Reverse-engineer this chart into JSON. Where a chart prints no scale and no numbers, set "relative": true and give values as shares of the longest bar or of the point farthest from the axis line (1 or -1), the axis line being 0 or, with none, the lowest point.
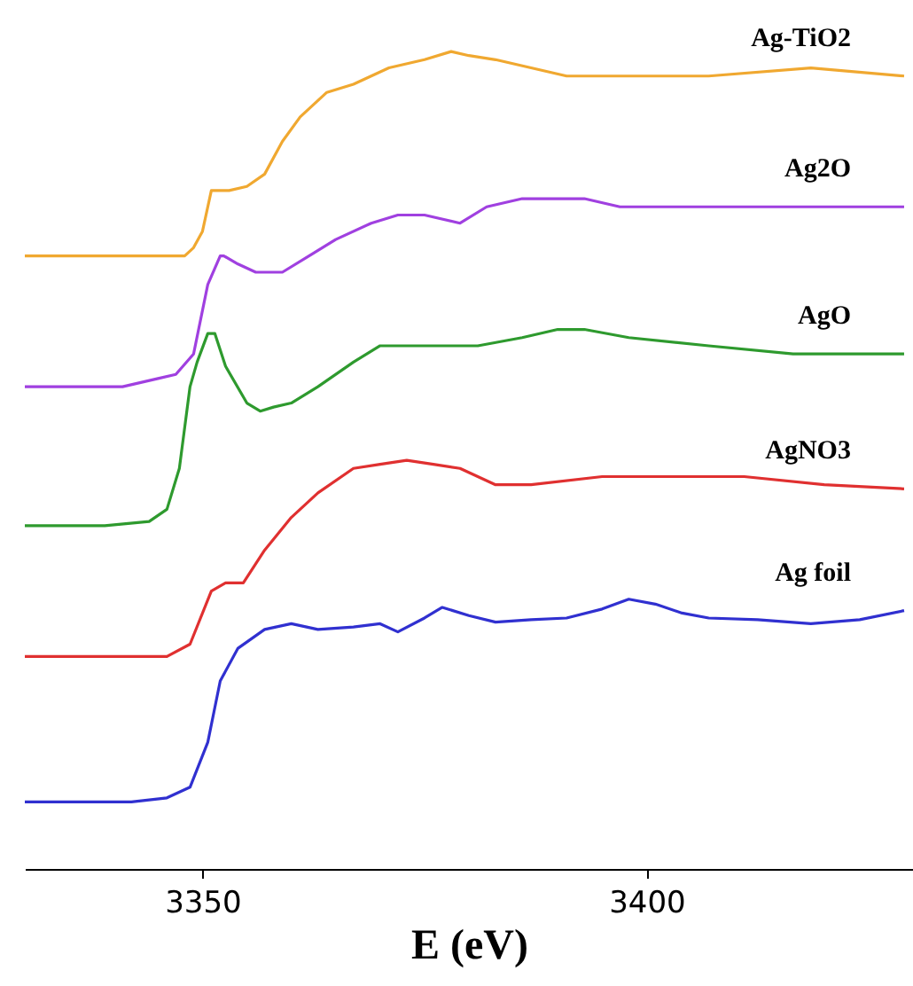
{
  "chart_data": {
    "type": "line",
    "relative": true,
    "xlabel": "E (eV)",
    "xlim": [
      3330,
      3430
    ],
    "xticks": [
      3350,
      3400
    ],
    "series": [
      {
        "name": "Ag-TiO2",
        "color": "#f0a830",
        "x": [
          3330,
          3346,
          3348,
          3349,
          3350,
          3351,
          3353,
          3355,
          3357,
          3359,
          3361,
          3364,
          3367,
          3371,
          3375,
          3378,
          3380,
          3383,
          3387,
          3391,
          3399,
          3407,
          3418.5,
          3429
        ],
        "values": [
          0.75,
          0.75,
          0.75,
          0.76,
          0.78,
          0.83,
          0.83,
          0.835,
          0.85,
          0.89,
          0.92,
          0.95,
          0.96,
          0.98,
          0.99,
          1.0,
          0.995,
          0.99,
          0.98,
          0.97,
          0.97,
          0.97,
          0.98,
          0.97
        ]
      },
      {
        "name": "Ag2O",
        "color": "#a040e0",
        "x": [
          3330,
          3341,
          3345,
          3347,
          3349,
          3350.6,
          3352,
          3352.4,
          3354,
          3356,
          3359,
          3362,
          3365,
          3369,
          3372,
          3375,
          3379,
          3382,
          3386,
          3389,
          3393,
          3397,
          3403,
          3411,
          3420,
          3429
        ],
        "values": [
          0.59,
          0.59,
          0.6,
          0.605,
          0.63,
          0.715,
          0.75,
          0.75,
          0.74,
          0.73,
          0.73,
          0.75,
          0.77,
          0.79,
          0.8,
          0.8,
          0.79,
          0.81,
          0.82,
          0.82,
          0.82,
          0.81,
          0.81,
          0.81,
          0.81,
          0.81
        ]
      },
      {
        "name": "AgO",
        "color": "#2e9a2e",
        "x": [
          3330,
          3339,
          3344,
          3346,
          3347.4,
          3348.6,
          3349.4,
          3350.6,
          3351.4,
          3352.6,
          3355,
          3356.5,
          3358,
          3360,
          3363,
          3367,
          3370,
          3373,
          3377,
          3381,
          3386,
          3390,
          3393,
          3398,
          3407,
          3416.5,
          3424,
          3429
        ],
        "values": [
          0.42,
          0.42,
          0.425,
          0.44,
          0.49,
          0.59,
          0.62,
          0.655,
          0.655,
          0.615,
          0.57,
          0.56,
          0.565,
          0.57,
          0.59,
          0.62,
          0.64,
          0.64,
          0.64,
          0.64,
          0.65,
          0.66,
          0.66,
          0.65,
          0.64,
          0.63,
          0.63,
          0.63
        ]
      },
      {
        "name": "AgNO3",
        "color": "#e03030",
        "x": [
          3330,
          3342,
          3346,
          3348.6,
          3351,
          3352.6,
          3354.6,
          3357,
          3360,
          3363,
          3367,
          3370,
          3373,
          3376,
          3379,
          3383,
          3387,
          3395,
          3403,
          3411,
          3420,
          3429
        ],
        "values": [
          0.26,
          0.26,
          0.26,
          0.275,
          0.34,
          0.35,
          0.35,
          0.39,
          0.43,
          0.46,
          0.49,
          0.495,
          0.5,
          0.495,
          0.49,
          0.47,
          0.47,
          0.48,
          0.48,
          0.48,
          0.47,
          0.465
        ]
      },
      {
        "name": "Ag foil",
        "color": "#3030d0",
        "x": [
          3330,
          3342,
          3346,
          3348.6,
          3350.6,
          3352,
          3354,
          3357,
          3360,
          3363,
          3367,
          3370,
          3372,
          3375,
          3377,
          3380,
          3383,
          3387,
          3391,
          3395,
          3398,
          3401,
          3404,
          3407,
          3412.5,
          3418.5,
          3424,
          3429
        ],
        "values": [
          0.082,
          0.082,
          0.087,
          0.1,
          0.155,
          0.23,
          0.27,
          0.293,
          0.3,
          0.293,
          0.296,
          0.3,
          0.29,
          0.307,
          0.32,
          0.31,
          0.302,
          0.305,
          0.307,
          0.318,
          0.33,
          0.324,
          0.313,
          0.307,
          0.305,
          0.3,
          0.305,
          0.316
        ]
      }
    ]
  }
}
